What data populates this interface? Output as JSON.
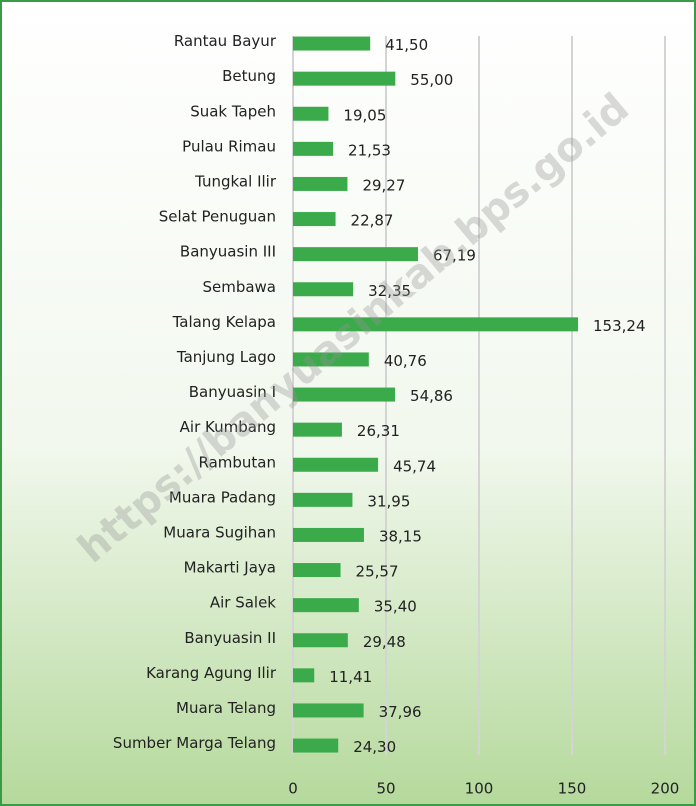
{
  "chart_data": {
    "type": "bar",
    "orientation": "horizontal",
    "color": "#3aaa4a",
    "grid": true,
    "watermark": "https://banyuasinkab.bps.go.id",
    "categories": [
      "Rantau Bayur",
      "Betung",
      "Suak Tapeh",
      "Pulau Rimau",
      "Tungkal Ilir",
      "Selat Penuguan",
      "Banyuasin III",
      "Sembawa",
      "Talang Kelapa",
      "Tanjung Lago",
      "Banyuasin I",
      "Air Kumbang",
      "Rambutan",
      "Muara Padang",
      "Muara Sugihan",
      "Makarti Jaya",
      "Air Salek",
      "Banyuasin II",
      "Karang Agung Ilir",
      "Muara Telang",
      "Sumber Marga Telang"
    ],
    "values": [
      41.5,
      55.0,
      19.05,
      21.53,
      29.27,
      22.87,
      67.19,
      32.35,
      153.24,
      40.76,
      54.86,
      26.31,
      45.74,
      31.95,
      38.15,
      25.57,
      35.4,
      29.48,
      11.41,
      37.96,
      24.3
    ],
    "value_labels": [
      "41,50",
      "55,00",
      "19,05",
      "21,53",
      "29,27",
      "22,87",
      "67,19",
      "32,35",
      "153,24",
      "40,76",
      "54,86",
      "26,31",
      "45,74",
      "31,95",
      "38,15",
      "25,57",
      "35,40",
      "29,48",
      "11,41",
      "37,96",
      "24,30"
    ],
    "xlim": [
      0,
      200
    ],
    "xticks": [
      0,
      50,
      100,
      150,
      200
    ]
  }
}
